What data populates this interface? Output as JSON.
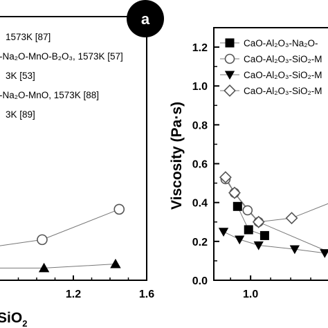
{
  "panel_label": "a",
  "chart_data": [
    {
      "type": "scatter",
      "xlim": [
        0.8,
        1.6
      ],
      "ylim": [
        0.0,
        1.3
      ],
      "x_ticks": [
        "1.2",
        "1.6"
      ],
      "xlabel_visible": "SiO",
      "xlabel_sub": "2",
      "legend": [
        "1573K [87]",
        "-Na₂O-MnO-B₂O₃, 1573K [57]",
        "3K [53]",
        "-Na₂O-MnO, 1573K [88]",
        "3K [89]"
      ],
      "legend_placement": "top-left",
      "grid": false,
      "series": [
        {
          "marker": "open-circle",
          "x": [
            0.8,
            1.03,
            1.45
          ],
          "y": [
            0.17,
            0.2,
            0.35
          ]
        },
        {
          "marker": "filled-triangle",
          "x": [
            0.8,
            1.04,
            1.43
          ],
          "y": [
            0.06,
            0.06,
            0.08
          ]
        }
      ]
    },
    {
      "type": "line",
      "xlim": [
        0.82,
        1.4
      ],
      "ylim": [
        0.0,
        1.3
      ],
      "x_ticks": [
        "1.0"
      ],
      "y_ticks": [
        "0.0",
        "0.2",
        "0.4",
        "0.6",
        "0.8",
        "1.0",
        "1.2"
      ],
      "ylabel": "Viscosity (Pa·s)",
      "legend": [
        {
          "marker": "filled-square",
          "label": "CaO-Al₂O₃-Na₂O-"
        },
        {
          "marker": "open-circle",
          "label": "CaO-Al₂O₃-SiO₂-M"
        },
        {
          "marker": "filled-triangle-down",
          "label": "CaO-Al₂O₃-SiO₂-M"
        },
        {
          "marker": "open-diamond",
          "label": "CaO-Al₂O₃-SiO₂-M"
        }
      ],
      "legend_placement": "top-right",
      "grid": false,
      "series": [
        {
          "marker": "filled-square",
          "x": [
            0.935,
            0.99,
            1.07
          ],
          "y": [
            0.38,
            0.26,
            0.23
          ]
        },
        {
          "marker": "open-circle",
          "x": [
            0.875,
            0.92,
            0.985,
            1.04,
            1.38
          ],
          "y": [
            0.52,
            0.45,
            0.36,
            0.3,
            0.15
          ]
        },
        {
          "marker": "filled-triangle-down",
          "x": [
            0.865,
            0.945,
            1.04,
            1.22,
            1.37
          ],
          "y": [
            0.25,
            0.21,
            0.18,
            0.16,
            0.14
          ]
        },
        {
          "marker": "open-diamond",
          "x": [
            0.875,
            0.92,
            1.04,
            1.205,
            1.4
          ],
          "y": [
            0.53,
            0.45,
            0.3,
            0.32,
            0.4
          ]
        }
      ]
    }
  ]
}
